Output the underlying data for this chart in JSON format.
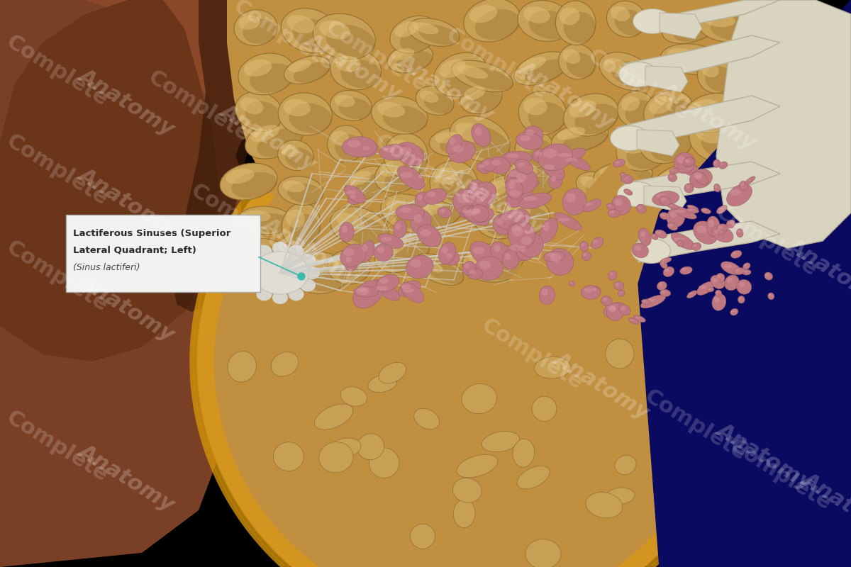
{
  "bg_color": "#000000",
  "skin_base": "#7A4025",
  "skin_mid": "#6A3520",
  "skin_dark": "#3D1E10",
  "breast_border": "#D4920A",
  "breast_inner": "#C8882A",
  "fat_base": "#C8A060",
  "fat_mid": "#B89050",
  "fat_highlight": "#E0C080",
  "fat_dark": "#907030",
  "duct_white": "#D8D8D0",
  "lobule_pink": "#C08090",
  "lobule_pink2": "#A86878",
  "bone_base": "#D8D4C0",
  "bone_edge": "#B8B098",
  "blue_dark": "#0A0A70",
  "blue_mid": "#151590",
  "label_bg": "#F2F2F0",
  "label_border": "#AAAAAA",
  "label_text": "#2A2A2A",
  "label_italic": "#444444",
  "connector_teal": "#3DBAAA",
  "wm_color": "#FFFFFF",
  "wm_alpha": 0.18,
  "label_line1": "Lactiferous Sinuses (Superior",
  "label_line2": "Lateral Quadrant; Left)",
  "label_line3": "(Sinus lactiferi)"
}
